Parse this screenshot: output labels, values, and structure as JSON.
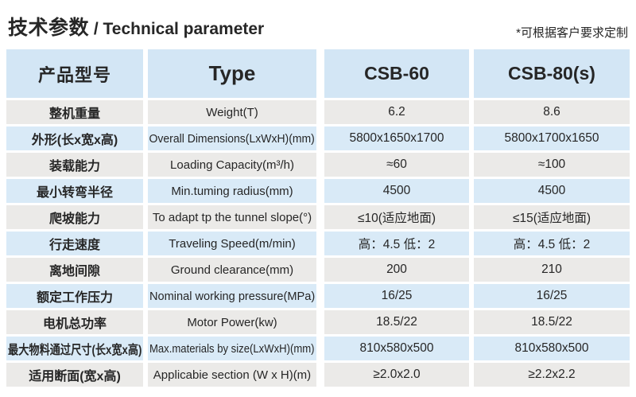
{
  "page": {
    "title_cn": "技术参数",
    "title_sep": " / ",
    "title_en": "Technical parameter",
    "note": "*可根据客户要求定制"
  },
  "table": {
    "headers": {
      "product_model": "产品型号",
      "type": "Type",
      "model1": "CSB-60",
      "model2": "CSB-80(s)"
    },
    "rows": [
      {
        "cn": "整机重量",
        "en": "Weight(T)",
        "v1": "6.2",
        "v2": "8.6"
      },
      {
        "cn": "外形(长x宽x高)",
        "en": "Overall Dimensions(LxWxH)(mm)",
        "v1": "5800x1650x1700",
        "v2": "5800x1700x1650"
      },
      {
        "cn": "装载能力",
        "en": "Loading Capacity(m³/h)",
        "v1": "≈60",
        "v2": "≈100"
      },
      {
        "cn": "最小转弯半径",
        "en": "Min.tuming radius(mm)",
        "v1": "4500",
        "v2": "4500"
      },
      {
        "cn": "爬坡能力",
        "en": "To adapt tp the tunnel slope(°)",
        "v1": "≤10(适应地面)",
        "v2": "≤15(适应地面)"
      },
      {
        "cn": "行走速度",
        "en": "Traveling Speed(m/min)",
        "v1": "高：4.5 低：2",
        "v2": "高：4.5 低：2"
      },
      {
        "cn": "离地间隙",
        "en": "Ground clearance(mm)",
        "v1": "200",
        "v2": "210"
      },
      {
        "cn": "额定工作压力",
        "en": "Nominal working pressure(MPa)",
        "v1": "16/25",
        "v2": "16/25"
      },
      {
        "cn": "电机总功率",
        "en": "Motor Power(kw)",
        "v1": "18.5/22",
        "v2": "18.5/22"
      },
      {
        "cn": "最大物料通过尺寸(长x宽x高)",
        "en": "Max.materials by size(LxWxH)(mm)",
        "v1": "810x580x500",
        "v2": "810x580x500"
      },
      {
        "cn": "适用断面(宽x高)",
        "en": "Applicabie section (W x H)(m)",
        "v1": "≥2.0x2.0",
        "v2": "≥2.2x2.2"
      }
    ]
  },
  "colors": {
    "header_bg": "#d3e6f5",
    "row_blue": "#d9eaf7",
    "row_gray": "#ebeae8",
    "text": "#262626"
  }
}
